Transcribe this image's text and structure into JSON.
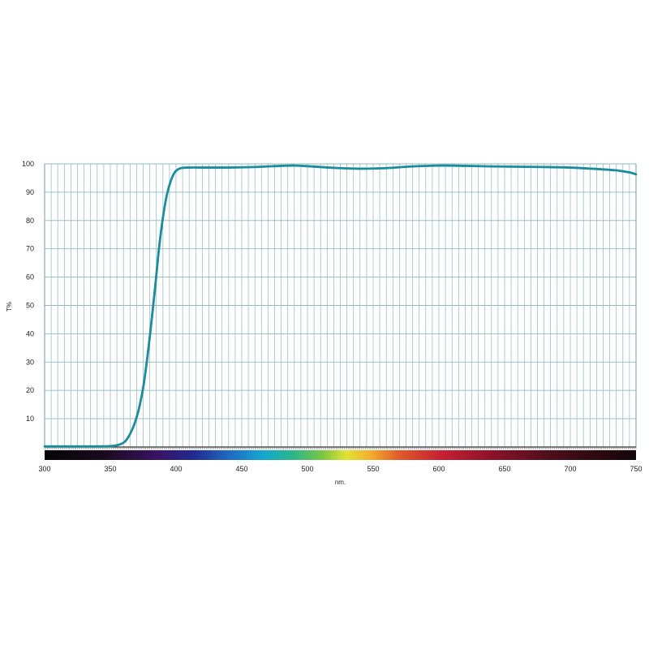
{
  "chart_data": {
    "type": "line",
    "xlabel": "nm.",
    "ylabel": "T%",
    "xlim": [
      300,
      750
    ],
    "ylim": [
      0,
      100
    ],
    "x_ticks": [
      300,
      350,
      400,
      450,
      500,
      550,
      600,
      650,
      700,
      750
    ],
    "y_ticks": [
      10,
      20,
      30,
      40,
      50,
      60,
      70,
      80,
      90,
      100
    ],
    "x_minor_step": 5,
    "grid": true,
    "grid_color": "#8fb8bf",
    "line_color": "#1a8c9c",
    "spectrum_bar": true,
    "series": [
      {
        "x": [
          300,
          320,
          340,
          350,
          355,
          360,
          363,
          366,
          369,
          372,
          375,
          378,
          381,
          384,
          387,
          390,
          393,
          396,
          399,
          402,
          405,
          410,
          420,
          440,
          460,
          480,
          490,
          500,
          520,
          540,
          560,
          580,
          600,
          620,
          640,
          660,
          680,
          700,
          720,
          735,
          745,
          750
        ],
        "y": [
          0.2,
          0.2,
          0.2,
          0.3,
          0.6,
          1.5,
          3,
          5.5,
          9,
          14,
          21,
          31,
          43,
          56,
          70,
          81,
          89,
          94,
          97,
          98.2,
          98.6,
          98.7,
          98.7,
          98.7,
          98.9,
          99.3,
          99.4,
          99.2,
          98.6,
          98.3,
          98.5,
          99.1,
          99.4,
          99.3,
          99.1,
          99,
          98.9,
          98.7,
          98.2,
          97.7,
          97,
          96.3
        ]
      }
    ]
  }
}
